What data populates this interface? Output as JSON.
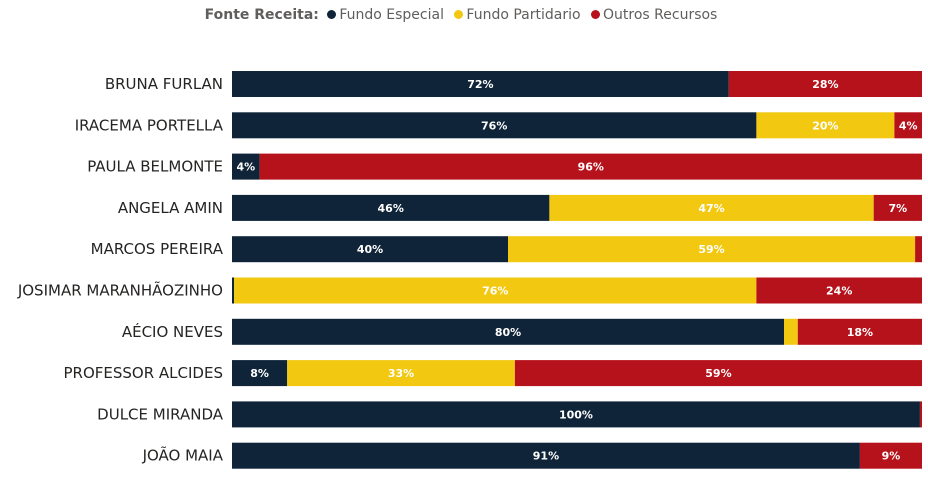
{
  "legend": {
    "title": "Fonte Receita:",
    "items": [
      {
        "label": "Fundo Especial",
        "color": "#0f2438"
      },
      {
        "label": "Fundo Partidario",
        "color": "#f2c811"
      },
      {
        "label": "Outros Recursos",
        "color": "#b5121b"
      }
    ]
  },
  "chart_data": {
    "type": "bar",
    "orientation": "horizontal",
    "stacked": "100%",
    "legend_position": "top",
    "categories": [
      "BRUNA FURLAN",
      "IRACEMA PORTELLA",
      "PAULA BELMONTE",
      "ANGELA AMIN",
      "MARCOS PEREIRA",
      "JOSIMAR MARANHÃOZINHO",
      "AÉCIO NEVES",
      "PROFESSOR ALCIDES",
      "DULCE MIRANDA",
      "JOÃO MAIA"
    ],
    "series": [
      {
        "name": "Fundo Especial",
        "color": "#0f2438",
        "values": [
          72,
          76,
          4,
          46,
          40,
          0.3,
          80,
          8,
          99.7,
          91
        ],
        "labels": [
          "72%",
          "76%",
          "4%",
          "46%",
          "40%",
          "",
          "80%",
          "8%",
          "100%",
          "91%"
        ]
      },
      {
        "name": "Fundo Partidario",
        "color": "#f2c811",
        "values": [
          0,
          20,
          0,
          47,
          59,
          75.7,
          2,
          33,
          0,
          0
        ],
        "labels": [
          "",
          "20%",
          "",
          "47%",
          "59%",
          "76%",
          "",
          "33%",
          "",
          ""
        ]
      },
      {
        "name": "Outros Recursos",
        "color": "#b5121b",
        "values": [
          28,
          4,
          96,
          7,
          1,
          24,
          18,
          59,
          0.3,
          9
        ],
        "labels": [
          "28%",
          "4%",
          "96%",
          "7%",
          "",
          "24%",
          "18%",
          "59%",
          "",
          "9%"
        ]
      }
    ],
    "xlim": [
      0,
      100
    ],
    "grid": false
  }
}
